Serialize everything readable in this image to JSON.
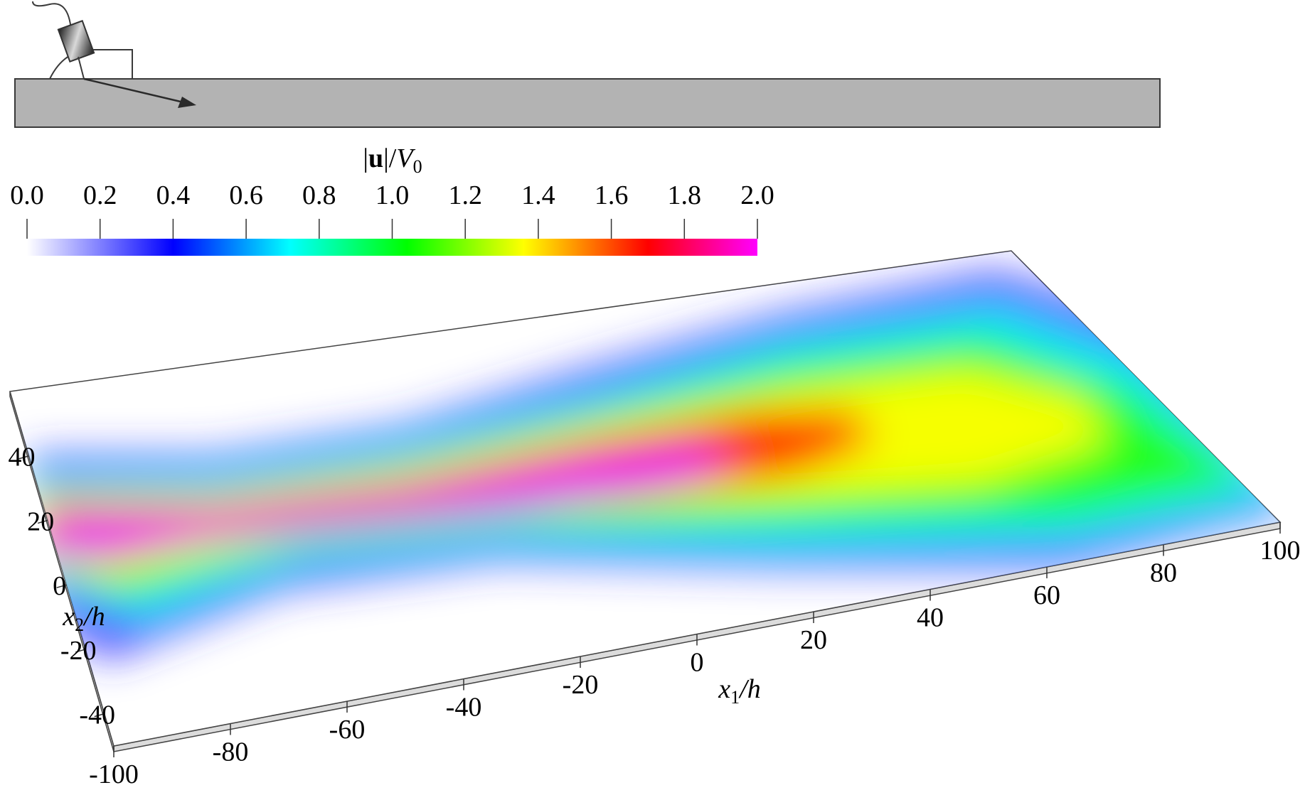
{
  "colorbar": {
    "title": {
      "bar": "|",
      "bold": "u",
      "slash": "|/",
      "italic": "V",
      "sub": "0"
    },
    "ticks": [
      "0.0",
      "0.2",
      "0.4",
      "0.6",
      "0.8",
      "1.0",
      "1.2",
      "1.4",
      "1.6",
      "1.8",
      "2.0"
    ],
    "range": [
      0.0,
      2.0
    ],
    "colormap": [
      "#ffffff",
      "#0000ff",
      "#00ffff",
      "#00ff00",
      "#ffff00",
      "#ff0000",
      "#ff00ff"
    ]
  },
  "plot": {
    "x1_axis": {
      "label_var": "x",
      "label_sub": "1",
      "label_den": "/h",
      "ticks": [
        "-100",
        "-80",
        "-60",
        "-40",
        "-20",
        "0",
        "20",
        "40",
        "60",
        "80",
        "100"
      ]
    },
    "x2_axis": {
      "label_var": "x",
      "label_sub": "2",
      "label_den": "/h",
      "ticks": [
        "-40",
        "-20",
        "0",
        "20",
        "40"
      ]
    }
  },
  "colors": {
    "plate": "#b3b3b3",
    "outline": "#3a3a3a",
    "arrow": "#2a2a2a"
  }
}
